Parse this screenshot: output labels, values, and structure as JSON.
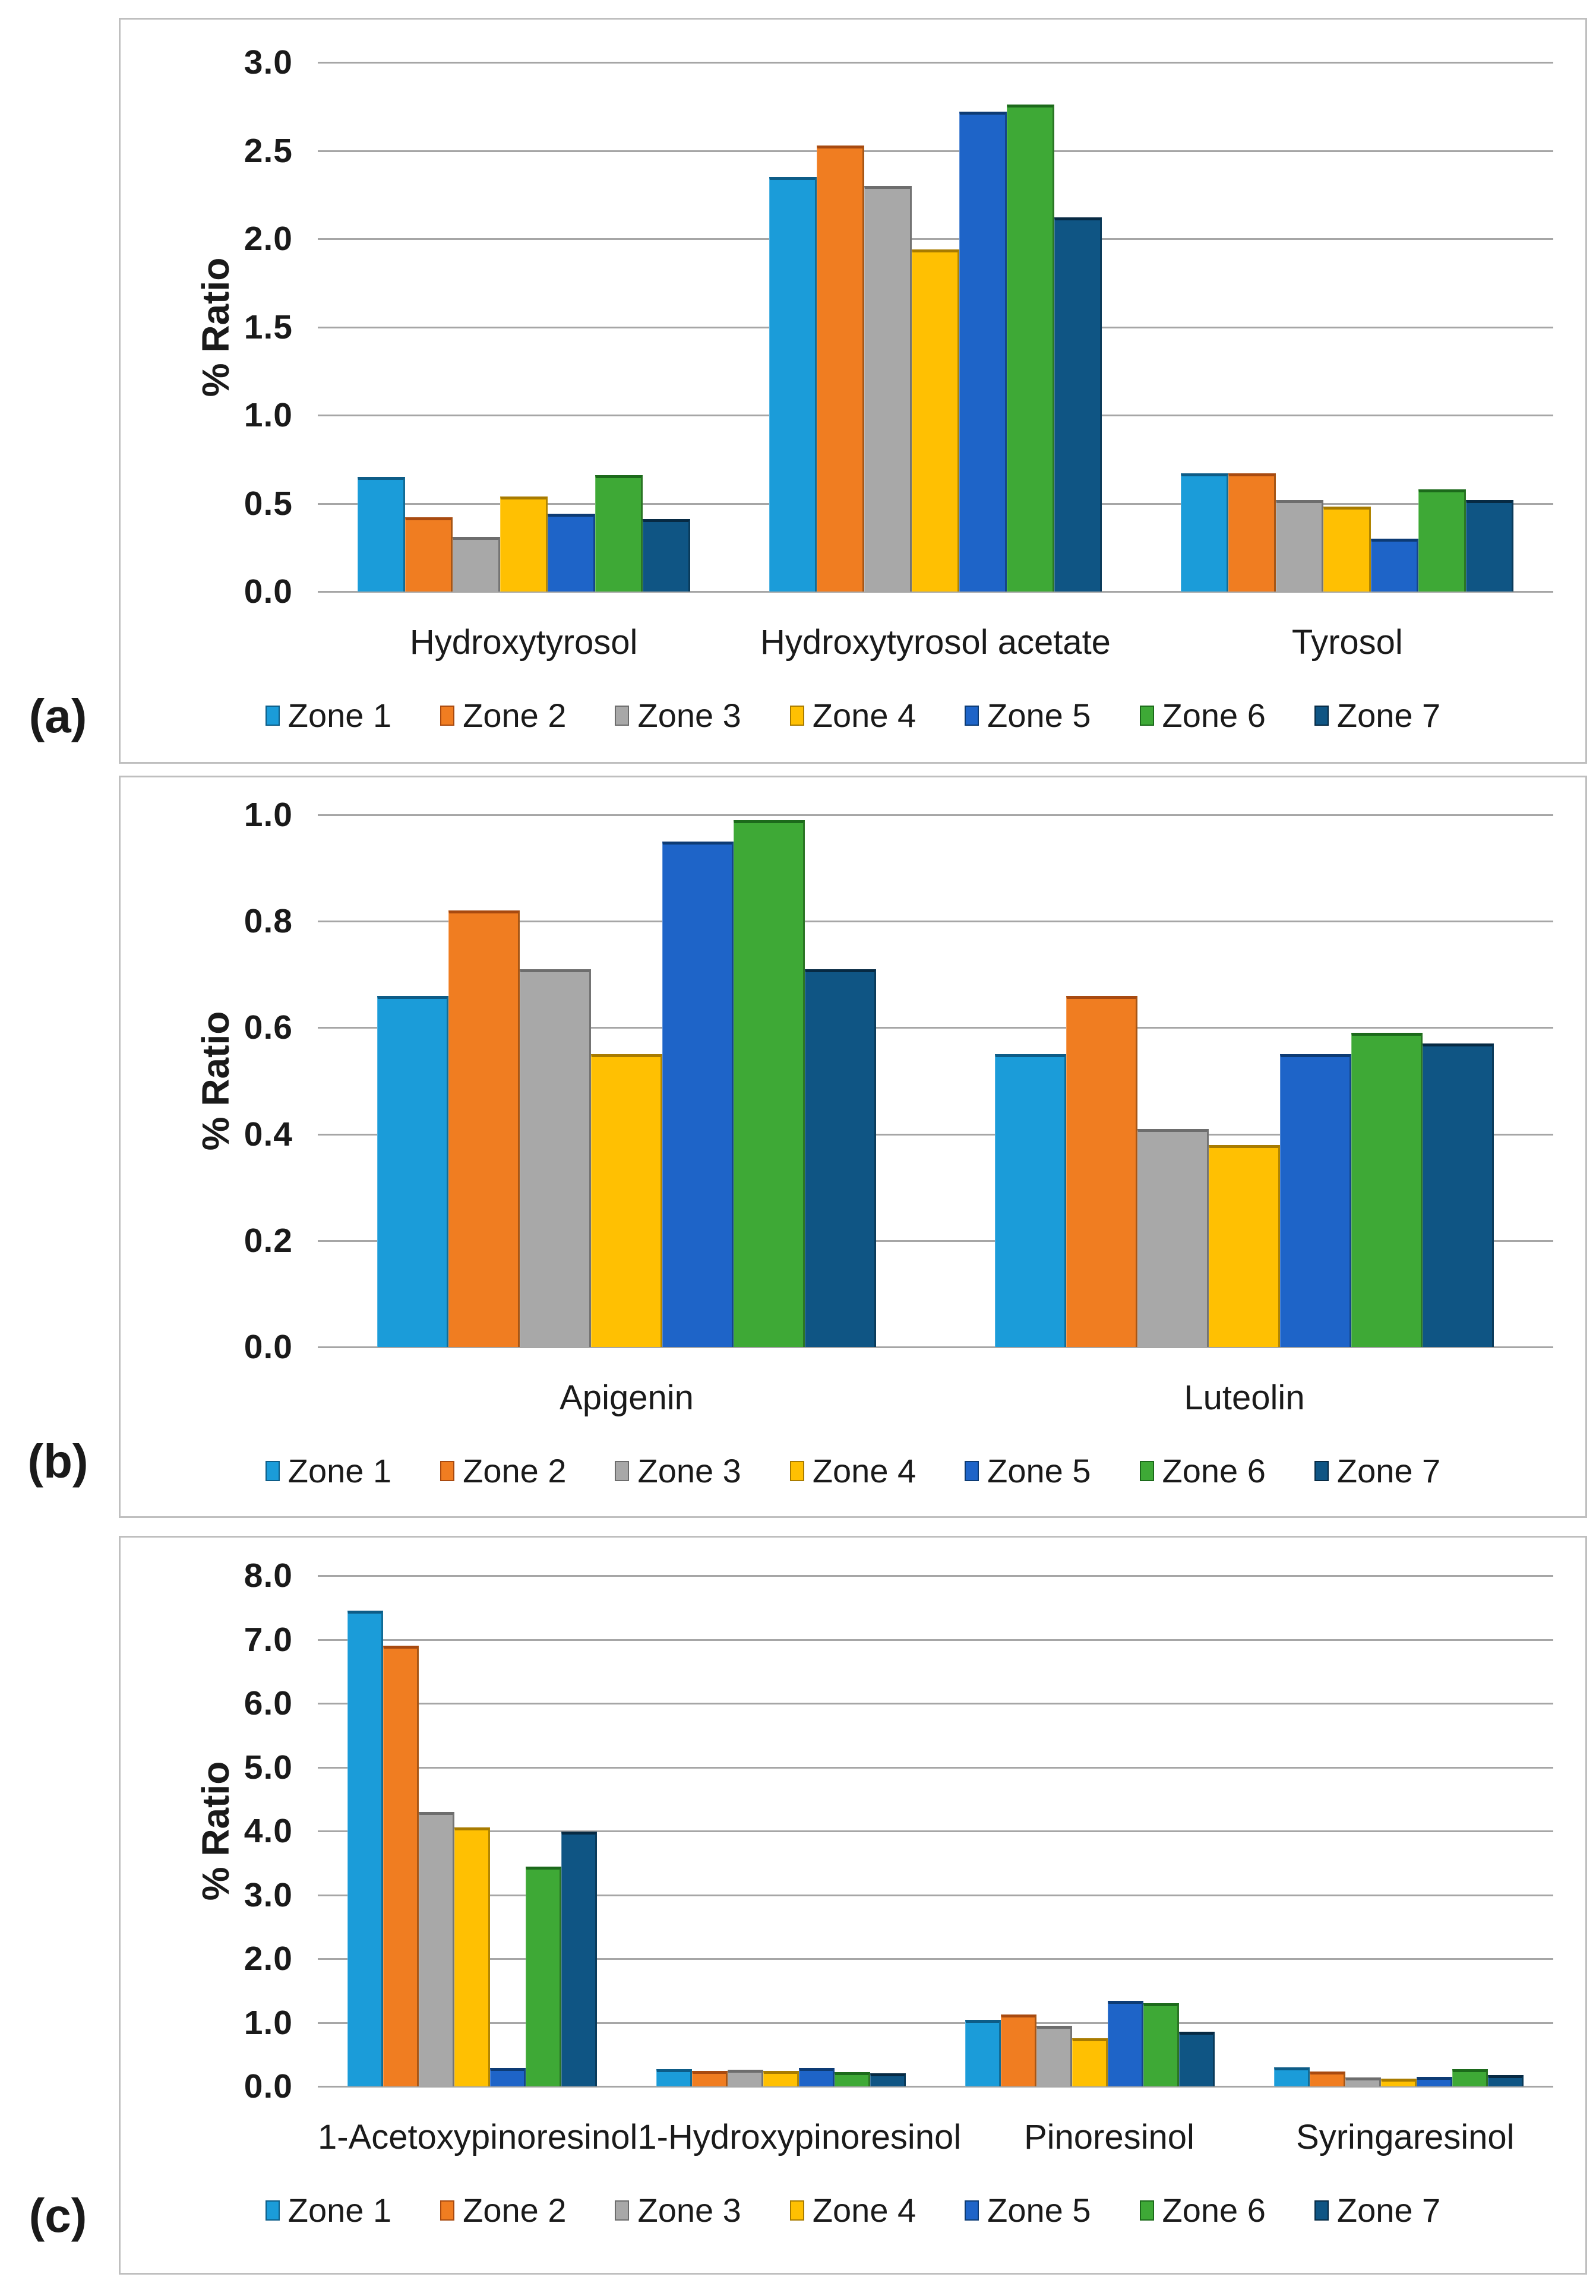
{
  "page": {
    "background": "#FFFFFF"
  },
  "style": {
    "frame_border_color": "#BFBFBF",
    "gridline_color": "#A6A6A6",
    "text_color": "#1A1A1A",
    "zones": [
      {
        "name": "Zone 1",
        "fill": "#1B9CD9",
        "edge": "#0D5C87"
      },
      {
        "name": "Zone 2",
        "fill": "#F07D21",
        "edge": "#A84A10"
      },
      {
        "name": "Zone 3",
        "fill": "#A8A8A8",
        "edge": "#6D6D6D"
      },
      {
        "name": "Zone 4",
        "fill": "#FFC002",
        "edge": "#A87B00"
      },
      {
        "name": "Zone 5",
        "fill": "#1E64C8",
        "edge": "#0D3B74"
      },
      {
        "name": "Zone 6",
        "fill": "#3EA936",
        "edge": "#1C6A1B"
      },
      {
        "name": "Zone 7",
        "fill": "#0F5584",
        "edge": "#072A43"
      }
    ]
  },
  "legend_labels": [
    "Zone 1",
    "Zone 2",
    "Zone 3",
    "Zone 4",
    "Zone 5",
    "Zone 6",
    "Zone 7"
  ],
  "chart_data": [
    {
      "panel_label": "(a)",
      "type": "bar",
      "title": "",
      "xlabel": "",
      "ylabel": "% Ratio",
      "ylim": [
        0,
        3.0
      ],
      "ystep": 0.5,
      "yticks": [
        "0.0",
        "0.5",
        "1.0",
        "1.5",
        "2.0",
        "2.5",
        "3.0"
      ],
      "grid": true,
      "legend_position": "bottom",
      "categories": [
        "Hydroxytyrosol",
        "Hydroxytyrosol acetate",
        "Tyrosol"
      ],
      "series": [
        {
          "name": "Zone 1",
          "values": [
            0.65,
            2.35,
            0.67
          ]
        },
        {
          "name": "Zone 2",
          "values": [
            0.42,
            2.53,
            0.67
          ]
        },
        {
          "name": "Zone 3",
          "values": [
            0.31,
            2.3,
            0.52
          ]
        },
        {
          "name": "Zone 4",
          "values": [
            0.54,
            1.94,
            0.48
          ]
        },
        {
          "name": "Zone 5",
          "values": [
            0.44,
            2.72,
            0.3
          ]
        },
        {
          "name": "Zone 6",
          "values": [
            0.66,
            2.76,
            0.58
          ]
        },
        {
          "name": "Zone 7",
          "values": [
            0.41,
            2.12,
            0.52
          ]
        }
      ]
    },
    {
      "panel_label": "(b)",
      "type": "bar",
      "title": "",
      "xlabel": "",
      "ylabel": "% Ratio",
      "ylim": [
        0,
        1.0
      ],
      "ystep": 0.2,
      "yticks": [
        "0.0",
        "0.2",
        "0.4",
        "0.6",
        "0.8",
        "1.0"
      ],
      "grid": true,
      "legend_position": "bottom",
      "categories": [
        "Apigenin",
        "Luteolin"
      ],
      "series": [
        {
          "name": "Zone 1",
          "values": [
            0.66,
            0.55
          ]
        },
        {
          "name": "Zone 2",
          "values": [
            0.82,
            0.66
          ]
        },
        {
          "name": "Zone 3",
          "values": [
            0.71,
            0.41
          ]
        },
        {
          "name": "Zone 4",
          "values": [
            0.55,
            0.38
          ]
        },
        {
          "name": "Zone 5",
          "values": [
            0.95,
            0.55
          ]
        },
        {
          "name": "Zone 6",
          "values": [
            0.99,
            0.59
          ]
        },
        {
          "name": "Zone 7",
          "values": [
            0.71,
            0.57
          ]
        }
      ]
    },
    {
      "panel_label": "(c)",
      "type": "bar",
      "title": "",
      "xlabel": "",
      "ylabel": "% Ratio",
      "ylim": [
        0,
        8.0
      ],
      "ystep": 1.0,
      "yticks": [
        "0.0",
        "1.0",
        "2.0",
        "3.0",
        "4.0",
        "5.0",
        "6.0",
        "7.0",
        "8.0"
      ],
      "grid": true,
      "legend_position": "bottom",
      "categories": [
        "1-Acetoxypinoresinol",
        "1-Hydroxypinoresinol",
        "Pinoresinol",
        "Syringaresinol"
      ],
      "series": [
        {
          "name": "Zone 1",
          "values": [
            7.45,
            0.27,
            1.04,
            0.3
          ]
        },
        {
          "name": "Zone 2",
          "values": [
            6.9,
            0.24,
            1.13,
            0.23
          ]
        },
        {
          "name": "Zone 3",
          "values": [
            4.3,
            0.26,
            0.95,
            0.14
          ]
        },
        {
          "name": "Zone 4",
          "values": [
            4.06,
            0.24,
            0.75,
            0.12
          ]
        },
        {
          "name": "Zone 5",
          "values": [
            0.29,
            0.29,
            1.34,
            0.15
          ]
        },
        {
          "name": "Zone 6",
          "values": [
            3.44,
            0.22,
            1.3,
            0.27
          ]
        },
        {
          "name": "Zone 7",
          "values": [
            3.99,
            0.2,
            0.86,
            0.18
          ]
        }
      ]
    }
  ]
}
